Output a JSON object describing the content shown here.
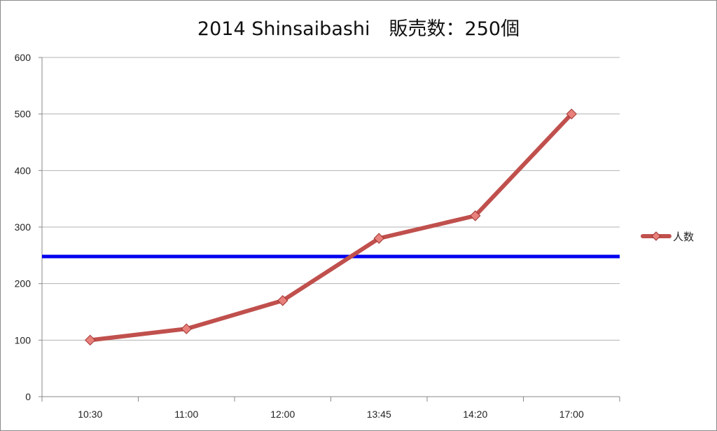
{
  "chart_data": {
    "type": "line",
    "title": "2014 Shinsaibashi　販売数：250個",
    "categories": [
      "10:30",
      "11:00",
      "12:00",
      "13:45",
      "14:20",
      "17:00"
    ],
    "series": [
      {
        "name": "人数",
        "values": [
          100,
          120,
          170,
          280,
          320,
          500
        ],
        "color": "#c0504d"
      }
    ],
    "reference_line": {
      "value": 248,
      "color": "#0000ee"
    },
    "ylim": [
      0,
      600
    ],
    "yticks": [
      0,
      100,
      200,
      300,
      400,
      500,
      600
    ],
    "grid": true,
    "legend_position": "right"
  }
}
